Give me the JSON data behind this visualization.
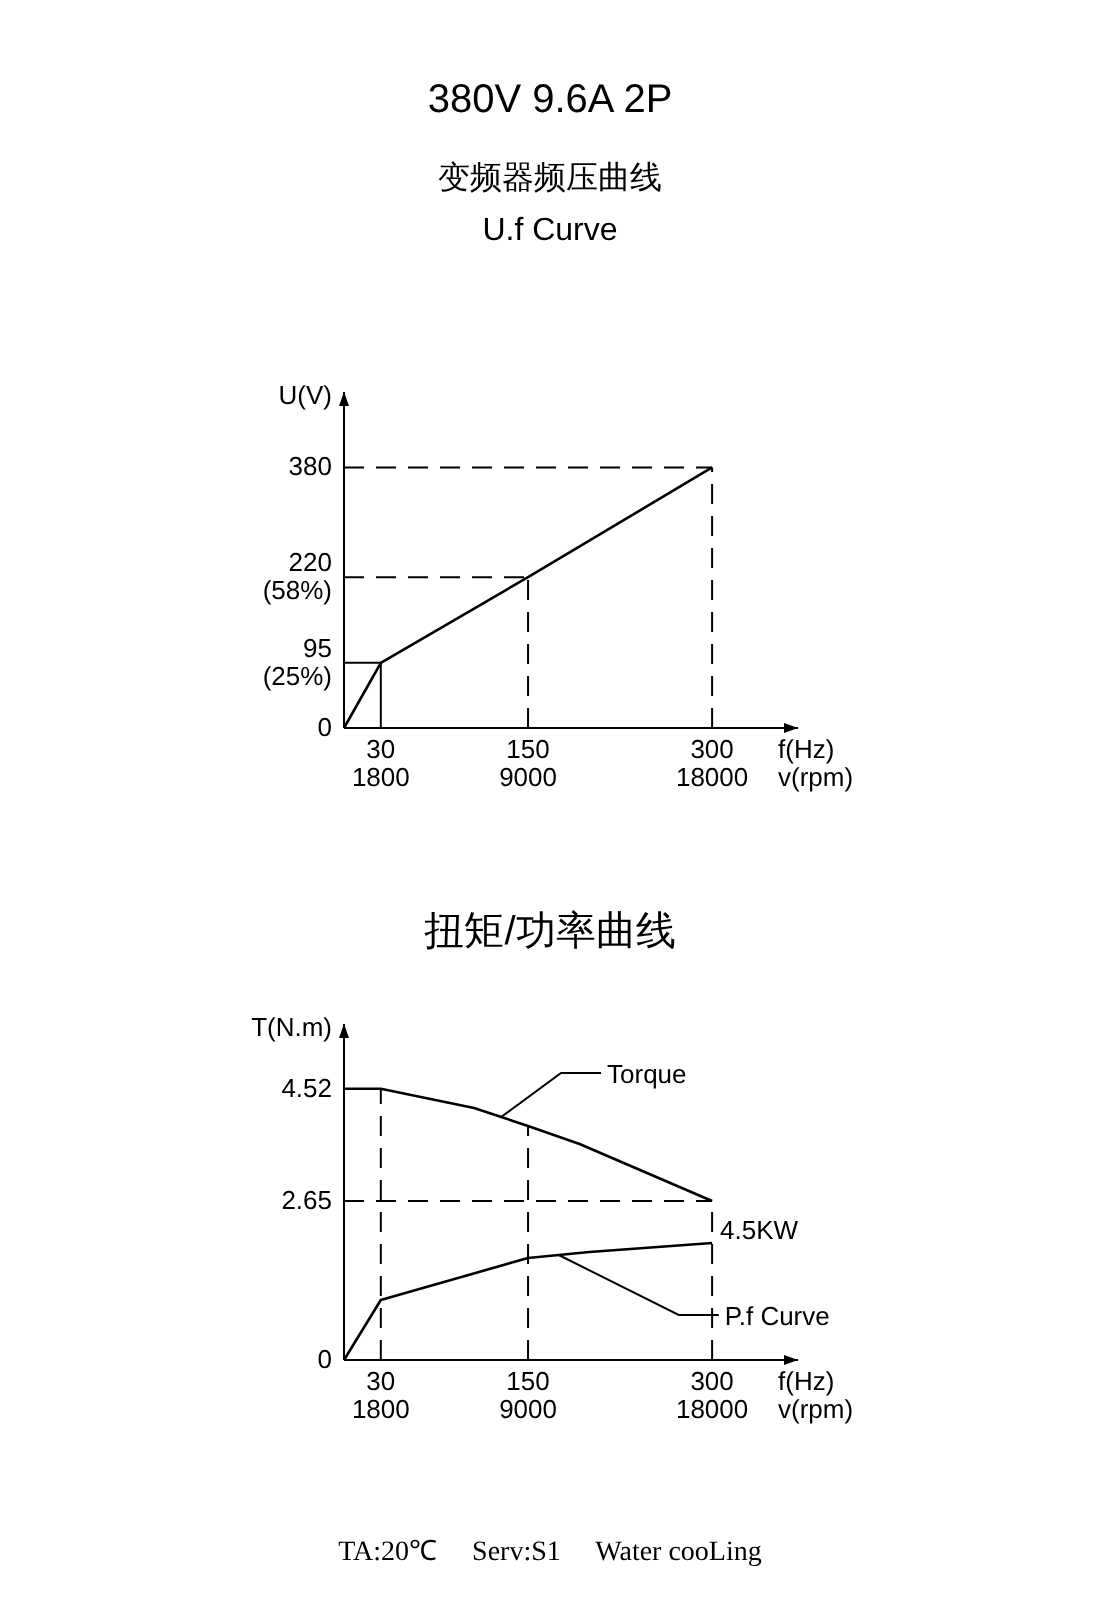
{
  "chart_data": [
    {
      "type": "line",
      "title": "380V 9.6A 2P",
      "subtitle": "变频器频压曲线\nU.f Curve",
      "xlabel": "f(Hz)",
      "x2label": "v(rpm)",
      "ylabel": "U(V)",
      "xlim": [
        0,
        370
      ],
      "ylim": [
        0,
        490
      ],
      "x2lim": [
        0,
        22200
      ],
      "xticks": [
        30,
        150,
        300
      ],
      "x2ticks": [
        1800,
        9000,
        18000
      ],
      "yticks": [
        0,
        {
          "value": 95,
          "label": "95\n(25%)"
        },
        {
          "value": 220,
          "label": "220\n(58%)"
        },
        380
      ],
      "marker": "none",
      "line_style": "solid",
      "series": [
        {
          "x": [
            0,
            30,
            150,
            300
          ],
          "color": "#000000",
          "values": [
            0,
            95,
            220,
            380
          ]
        }
      ],
      "ref_lines": [
        {
          "axis": "y",
          "value": 95,
          "line_style": "solid"
        },
        {
          "axis": "y",
          "value": 220,
          "line_style": "dashed"
        },
        {
          "axis": "y",
          "value": 380,
          "line_style": "dashed"
        },
        {
          "axis": "x",
          "value": 30,
          "line_style": "solid"
        },
        {
          "axis": "x",
          "value": 150,
          "line_style": "dashed"
        },
        {
          "axis": "x",
          "value": 300,
          "line_style": "dashed"
        }
      ]
    },
    {
      "type": "line",
      "title": "扭矩/功率曲线",
      "xlabel": "f(Hz)",
      "x2label": "v(rpm)",
      "ylabel": "T(N.m)",
      "xlim": [
        0,
        370
      ],
      "ylim": [
        0,
        5.6
      ],
      "x2lim": [
        0,
        22200
      ],
      "xticks": [
        30,
        150,
        300
      ],
      "x2ticks": [
        1800,
        9000,
        18000
      ],
      "yticks": [
        0,
        2.65,
        4.52
      ],
      "marker": "none",
      "line_style": "solid",
      "series": [
        {
          "name": "Torque",
          "x": [
            0,
            30,
            106,
            150,
            192,
            300
          ],
          "color": "#000000",
          "values": [
            4.52,
            4.52,
            4.2,
            3.9,
            3.6,
            2.65
          ]
        },
        {
          "name": "P.f Curve",
          "x": [
            0,
            30,
            150,
            200,
            300
          ],
          "color": "#000000",
          "values": [
            0,
            1.0,
            1.7,
            1.8,
            1.95
          ]
        }
      ],
      "ref_lines": [
        {
          "axis": "y",
          "value": 2.65,
          "line_style": "dashed"
        },
        {
          "axis": "x",
          "value": 30,
          "line_style": "dashed"
        },
        {
          "axis": "x",
          "value": 150,
          "line_style": "dashed"
        },
        {
          "axis": "x",
          "value": 300,
          "line_style": "dashed"
        }
      ],
      "annotations": [
        {
          "text": "4.5KW",
          "x": 300,
          "y": 1.95
        },
        "TA:20℃     Serv:S1     Water cooLing"
      ]
    }
  ]
}
